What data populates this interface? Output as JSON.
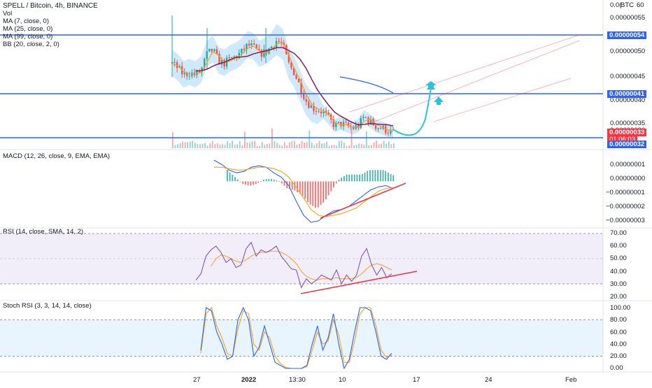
{
  "legend": {
    "title": "SPELL / Bitcoin, 4h, BINANCE",
    "vol": "Vol",
    "ma7": "MA (7, close, 0)",
    "ma25": "MA (25, close, 0)",
    "ma99": "MA (99, close, 0)",
    "bb": "BB (20, close, 2, 0)"
  },
  "currency_label": "BTC",
  "main_axis": {
    "ticks": [
      "0.00000060",
      "0.00000055",
      "0.00000050",
      "0.00000045",
      "0.00000040",
      "0.00000035",
      "0.00000030"
    ],
    "top_partial": "0.0(",
    "top_right": "60",
    "markers": [
      {
        "text": "0.00000054",
        "color": "#2962ff"
      },
      {
        "text": "0.00000041",
        "color": "#2962ff"
      },
      {
        "text": "0.00000033",
        "color": "#f23645"
      },
      {
        "text": "01:06:03",
        "color": "#f23645"
      },
      {
        "text": "0.00000032",
        "color": "#2962ff"
      }
    ]
  },
  "macd": {
    "title": "MACD (12, 26, close, 9, EMA, EMA)",
    "ticks": [
      "0.00000001",
      "0.00000000",
      "−0.00000001",
      "−0.00000002",
      "−0.00000003"
    ]
  },
  "rsi": {
    "title": "RSI (14, close, SMA, 14, 2)",
    "ticks": [
      "70.00",
      "60.00",
      "50.00",
      "40.00",
      "30.00",
      "20.00"
    ]
  },
  "stoch": {
    "title": "Stoch RSI (3, 3, 14, 14, close)",
    "ticks": [
      "100.00",
      "80.00",
      "60.00",
      "40.00",
      "20.00",
      "0.00"
    ]
  },
  "time_axis": [
    "27",
    "2022",
    "13:30",
    "10",
    "17",
    "24",
    "Feb"
  ],
  "colors": {
    "up": "#26a69a",
    "down": "#ef5350",
    "ma7": "#f7a21b",
    "ma25": "#880e4f",
    "ma99": "#2962ff",
    "bb_fill": "#bbdefb",
    "hline": "#2962ff",
    "arrow": "#26c6da",
    "trend": "#f23645"
  },
  "chart_data": [
    {
      "type": "candlestick",
      "pane": "price",
      "unit": "BTC",
      "ylim": [
        3.15e-07,
        6.05e-07
      ],
      "horizontal_levels": [
        5.4e-07,
        4.1e-07,
        3.2e-07
      ],
      "last_price": 3.3e-07,
      "countdown": "01:06:03",
      "series": [
        {
          "name": "MA (7, close, 0)"
        },
        {
          "name": "MA (25, close, 0)"
        },
        {
          "name": "MA (99, close, 0)"
        },
        {
          "name": "BB (20, close, 2, 0)"
        }
      ],
      "close_path": [
        4.8e-07,
        4.7e-07,
        4.55e-07,
        4.6e-07,
        4.55e-07,
        4.65e-07,
        5e-07,
        5.1e-07,
        4.85e-07,
        4.8e-07,
        4.9e-07,
        4.95e-07,
        5.05e-07,
        5.2e-07,
        5.15e-07,
        5e-07,
        5.05e-07,
        5.15e-07,
        5.3e-07,
        5.2e-07,
        4.8e-07,
        4.6e-07,
        4.3e-07,
        4e-07,
        3.85e-07,
        3.8e-07,
        3.75e-07,
        3.6e-07,
        3.45e-07,
        3.5e-07,
        3.45e-07,
        3.4e-07,
        3.45e-07,
        3.65e-07,
        3.55e-07,
        3.45e-07,
        3.4e-07,
        3.35e-07,
        3.3e-07
      ]
    },
    {
      "type": "line",
      "pane": "macd",
      "title": "MACD (12, 26, close, 9, EMA, EMA)",
      "ylim": [
        -3.1e-08,
        1.75e-08
      ],
      "macd_path": [
        1.5e-08,
        1.2e-08,
        8e-09,
        6e-09,
        7e-09,
        1e-08,
        1.1e-08,
        1e-08,
        6e-09,
        3e-09,
        -3e-09,
        -1.4e-08,
        -2.4e-08,
        -2.9e-08,
        -2.8e-08,
        -2.4e-08,
        -2.1e-08,
        -2e-08,
        -1.8e-08,
        -1.4e-08,
        -1e-08,
        -6e-09,
        -4e-09,
        -3e-09,
        -5e-09
      ],
      "signal_path": [
        1e-08,
        1e-08,
        9e-09,
        8e-09,
        8e-09,
        9e-09,
        1e-08,
        1e-08,
        9e-09,
        7e-09,
        3e-09,
        -4e-09,
        -1.2e-08,
        -2e-08,
        -2.4e-08,
        -2.5e-08,
        -2.4e-08,
        -2.3e-08,
        -2.1e-08,
        -1.9e-08,
        -1.5e-08,
        -1.1e-08,
        -7e-09,
        -5e-09,
        -4.5e-09
      ]
    },
    {
      "type": "line",
      "pane": "rsi",
      "title": "RSI (14, close, SMA, 14, 2)",
      "ylim": [
        20,
        70
      ],
      "bands": [
        30,
        70
      ],
      "rsi_path": [
        33,
        38,
        52,
        57,
        60,
        55,
        47,
        50,
        43,
        45,
        58,
        63,
        52,
        57,
        55,
        57,
        60,
        52,
        47,
        42,
        41,
        27,
        34,
        30,
        33,
        37,
        35,
        33,
        41,
        30,
        37,
        32,
        37,
        52,
        58,
        45,
        37,
        43,
        35,
        38
      ],
      "signal_path": [
        null,
        null,
        null,
        44,
        50,
        53,
        52,
        50,
        48,
        47,
        49,
        52,
        54,
        55,
        55,
        56,
        56,
        55,
        53,
        50,
        46,
        40,
        36,
        34,
        33,
        34,
        34,
        34,
        35,
        34,
        34,
        34,
        35,
        38,
        42,
        45,
        46,
        45,
        43,
        41
      ]
    },
    {
      "type": "line",
      "pane": "stoch",
      "title": "Stoch RSI (3, 3, 14, 14, close)",
      "ylim": [
        0,
        100
      ],
      "bands": [
        20,
        80
      ],
      "k_path": [
        30,
        100,
        95,
        60,
        40,
        15,
        20,
        80,
        100,
        80,
        20,
        35,
        70,
        40,
        10,
        5,
        0,
        0,
        0,
        0,
        5,
        40,
        70,
        30,
        50,
        90,
        40,
        0,
        15,
        60,
        100,
        100,
        95,
        60,
        20,
        15,
        25
      ],
      "d_path": [
        25,
        90,
        100,
        70,
        50,
        25,
        20,
        65,
        95,
        90,
        40,
        30,
        60,
        50,
        20,
        8,
        2,
        0,
        0,
        0,
        3,
        30,
        60,
        40,
        45,
        80,
        55,
        10,
        10,
        45,
        90,
        100,
        100,
        70,
        30,
        18,
        22
      ]
    }
  ]
}
